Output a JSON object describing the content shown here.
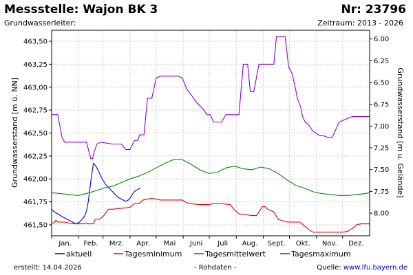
{
  "header": {
    "title": "Messstelle: Wajon BK 3",
    "number": "Nr: 23796",
    "aquifer": "Grundwasserleiter:",
    "period": "Zeitraum: 2013 - 2026"
  },
  "footer": {
    "created_label": "erstellt:",
    "created_date": "14.04.2026",
    "raw": "- Rohdaten -",
    "source_label": "Quelle:",
    "source_link": "www.lfu.bayern.de"
  },
  "chart_data": {
    "type": "line",
    "title": "Messstelle: Wajon BK 3",
    "ylabel": "Grundwasserstand [m ü. NN]",
    "ylabel_right": "Grundwasserstand [m u. Gelände]",
    "ylim": [
      461.38,
      463.62
    ],
    "ylim_right": [
      8.26,
      5.9
    ],
    "y_ticks": [
      "461,50",
      "461,75",
      "462,00",
      "462,25",
      "462,50",
      "462,75",
      "463,00",
      "463,25",
      "463,50"
    ],
    "y_ticks_right": [
      "6.00",
      "6.25",
      "6.50",
      "6.75",
      "7.00",
      "7.25",
      "7.50",
      "7.75",
      "8.00"
    ],
    "y_tick_values": [
      461.5,
      461.75,
      462.0,
      462.25,
      462.5,
      462.75,
      463.0,
      463.25,
      463.5
    ],
    "months": [
      "Jan.",
      "Feb.",
      "Mrz.",
      "Apr.",
      "Mai",
      "Juni",
      "Juli",
      "Aug.",
      "Sept.",
      "Okt.",
      "Nov.",
      "Dez."
    ],
    "x_range_days": [
      0,
      365
    ],
    "grid": true,
    "legend_position": "bottom",
    "series": [
      {
        "name": "aktuell",
        "color": "#0000cc",
        "x": [
          0,
          3,
          7,
          12,
          18,
          24,
          28,
          30,
          32,
          34,
          36,
          38,
          40,
          42,
          44,
          46,
          48,
          50,
          52,
          54,
          56,
          58,
          60,
          62,
          64,
          66,
          68,
          70,
          72,
          74,
          76,
          78,
          80,
          82,
          84,
          86,
          88,
          90,
          92,
          94,
          96,
          98,
          100,
          102
        ],
        "values": [
          461.67,
          461.64,
          461.62,
          461.59,
          461.56,
          461.53,
          461.51,
          461.52,
          461.53,
          461.55,
          461.57,
          461.6,
          461.65,
          461.75,
          461.9,
          462.05,
          462.17,
          462.15,
          462.12,
          462.08,
          462.04,
          462.0,
          461.97,
          461.94,
          461.92,
          461.9,
          461.88,
          461.86,
          461.84,
          461.82,
          461.8,
          461.79,
          461.78,
          461.77,
          461.76,
          461.76,
          461.77,
          461.79,
          461.82,
          461.85,
          461.87,
          461.88,
          461.89,
          461.9
        ]
      },
      {
        "name": "Tagesminimum",
        "color": "#dd0000",
        "x": [
          0,
          3,
          5,
          7,
          15,
          25,
          35,
          38,
          42,
          48,
          50,
          55,
          60,
          65,
          70,
          80,
          90,
          95,
          100,
          105,
          115,
          125,
          140,
          150,
          155,
          160,
          170,
          180,
          185,
          195,
          205,
          210,
          215,
          230,
          235,
          238,
          242,
          245,
          248,
          255,
          260,
          270,
          285,
          290,
          295,
          300,
          310,
          320,
          330,
          335,
          340,
          345,
          350,
          355,
          365
        ],
        "values": [
          461.52,
          461.52,
          461.55,
          461.53,
          461.53,
          461.51,
          461.51,
          461.52,
          461.51,
          461.51,
          461.56,
          461.56,
          461.6,
          461.67,
          461.67,
          461.68,
          461.69,
          461.73,
          461.73,
          461.77,
          461.79,
          461.77,
          461.77,
          461.77,
          461.74,
          461.73,
          461.72,
          461.72,
          461.73,
          461.73,
          461.72,
          461.66,
          461.62,
          461.6,
          461.6,
          461.64,
          461.7,
          461.7,
          461.67,
          461.64,
          461.56,
          461.53,
          461.53,
          461.49,
          461.45,
          461.42,
          461.42,
          461.42,
          461.42,
          461.42,
          461.43,
          461.46,
          461.5,
          461.51,
          461.51
        ]
      },
      {
        "name": "Tagesmittelwert",
        "color": "#008800",
        "x": [
          0,
          10,
          20,
          30,
          40,
          50,
          60,
          70,
          80,
          90,
          100,
          110,
          120,
          130,
          140,
          150,
          160,
          170,
          180,
          190,
          200,
          210,
          220,
          230,
          240,
          250,
          260,
          270,
          280,
          290,
          300,
          310,
          320,
          330,
          340,
          350,
          360,
          365
        ],
        "values": [
          461.85,
          461.84,
          461.83,
          461.82,
          461.84,
          461.87,
          461.9,
          461.92,
          461.96,
          462.0,
          462.03,
          462.07,
          462.12,
          462.17,
          462.21,
          462.21,
          462.16,
          462.1,
          462.06,
          462.07,
          462.12,
          462.14,
          462.11,
          462.1,
          462.13,
          462.11,
          462.06,
          461.99,
          461.93,
          461.9,
          461.86,
          461.84,
          461.83,
          461.82,
          461.82,
          461.83,
          461.84,
          461.85
        ]
      },
      {
        "name": "Tagesmaximum",
        "color": "#8800cc",
        "x": [
          0,
          7,
          9,
          12,
          15,
          20,
          40,
          45,
          47,
          49,
          52,
          56,
          70,
          80,
          85,
          90,
          95,
          99,
          101,
          106,
          110,
          115,
          120,
          125,
          140,
          145,
          150,
          155,
          160,
          165,
          175,
          178,
          182,
          186,
          195,
          200,
          215,
          220,
          225,
          228,
          232,
          238,
          255,
          258,
          262,
          265,
          268,
          272,
          276,
          280,
          282,
          286,
          288,
          291,
          294,
          300,
          308,
          312,
          318,
          322,
          330,
          345,
          355,
          365
        ],
        "values": [
          462.7,
          462.7,
          462.6,
          462.45,
          462.4,
          462.4,
          462.4,
          462.22,
          462.22,
          462.3,
          462.38,
          462.4,
          462.38,
          462.38,
          462.32,
          462.32,
          462.42,
          462.42,
          462.48,
          462.48,
          462.88,
          462.88,
          463.1,
          463.12,
          463.12,
          463.12,
          463.1,
          462.98,
          462.92,
          462.85,
          462.75,
          462.7,
          462.7,
          462.62,
          462.62,
          462.7,
          462.7,
          463.25,
          463.25,
          462.95,
          462.95,
          463.25,
          463.25,
          463.55,
          463.55,
          463.55,
          463.55,
          463.22,
          463.15,
          462.98,
          462.88,
          462.78,
          462.68,
          462.62,
          462.6,
          462.52,
          462.47,
          462.47,
          462.45,
          462.45,
          462.62,
          462.68,
          462.68,
          462.68
        ]
      }
    ]
  }
}
